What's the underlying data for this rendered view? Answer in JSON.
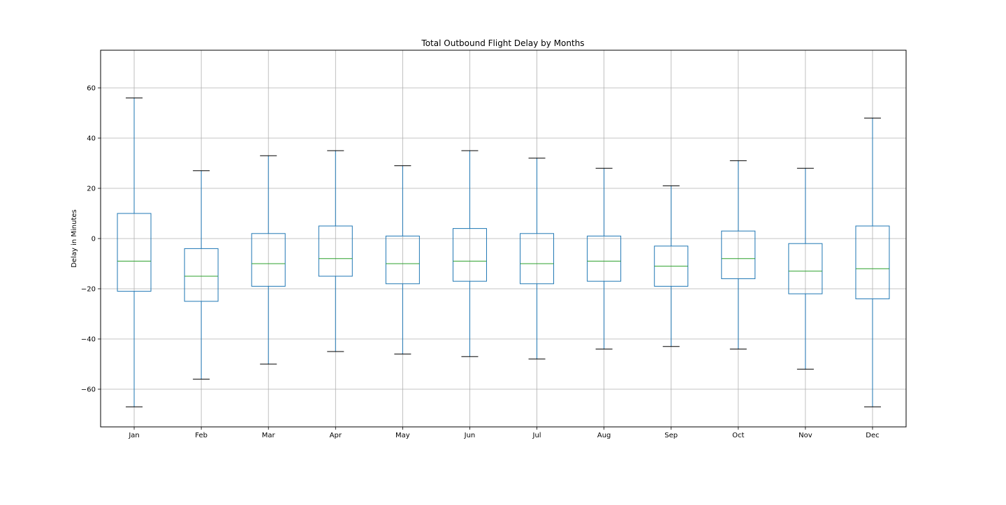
{
  "chart_data": {
    "type": "box",
    "title": "Total Outbound Flight Delay by Months",
    "xlabel": "",
    "ylabel": "Delay in Minutes",
    "ylim": [
      -75,
      75
    ],
    "yticks": [
      -60,
      -40,
      -20,
      0,
      20,
      40,
      60
    ],
    "grid": true,
    "categories": [
      "Jan",
      "Feb",
      "Mar",
      "Apr",
      "May",
      "Jun",
      "Jul",
      "Aug",
      "Sep",
      "Oct",
      "Nov",
      "Dec"
    ],
    "boxes": [
      {
        "category": "Jan",
        "whisker_low": -67,
        "q1": -21,
        "median": -9,
        "q3": 10,
        "whisker_high": 56
      },
      {
        "category": "Feb",
        "whisker_low": -56,
        "q1": -25,
        "median": -15,
        "q3": -4,
        "whisker_high": 27
      },
      {
        "category": "Mar",
        "whisker_low": -50,
        "q1": -19,
        "median": -10,
        "q3": 2,
        "whisker_high": 33
      },
      {
        "category": "Apr",
        "whisker_low": -45,
        "q1": -15,
        "median": -8,
        "q3": 5,
        "whisker_high": 35
      },
      {
        "category": "May",
        "whisker_low": -46,
        "q1": -18,
        "median": -10,
        "q3": 1,
        "whisker_high": 29
      },
      {
        "category": "Jun",
        "whisker_low": -47,
        "q1": -17,
        "median": -9,
        "q3": 4,
        "whisker_high": 35
      },
      {
        "category": "Jul",
        "whisker_low": -48,
        "q1": -18,
        "median": -10,
        "q3": 2,
        "whisker_high": 32
      },
      {
        "category": "Aug",
        "whisker_low": -44,
        "q1": -17,
        "median": -9,
        "q3": 1,
        "whisker_high": 28
      },
      {
        "category": "Sep",
        "whisker_low": -43,
        "q1": -19,
        "median": -11,
        "q3": -3,
        "whisker_high": 21
      },
      {
        "category": "Oct",
        "whisker_low": -44,
        "q1": -16,
        "median": -8,
        "q3": 3,
        "whisker_high": 31
      },
      {
        "category": "Nov",
        "whisker_low": -52,
        "q1": -22,
        "median": -13,
        "q3": -2,
        "whisker_high": 28
      },
      {
        "category": "Dec",
        "whisker_low": -67,
        "q1": -24,
        "median": -12,
        "q3": 5,
        "whisker_high": 48
      }
    ],
    "colors": {
      "box": "#1f77b4",
      "median": "#2ca02c",
      "cap": "#000000",
      "grid": "#b0b0b0",
      "axes": "#000000"
    }
  }
}
